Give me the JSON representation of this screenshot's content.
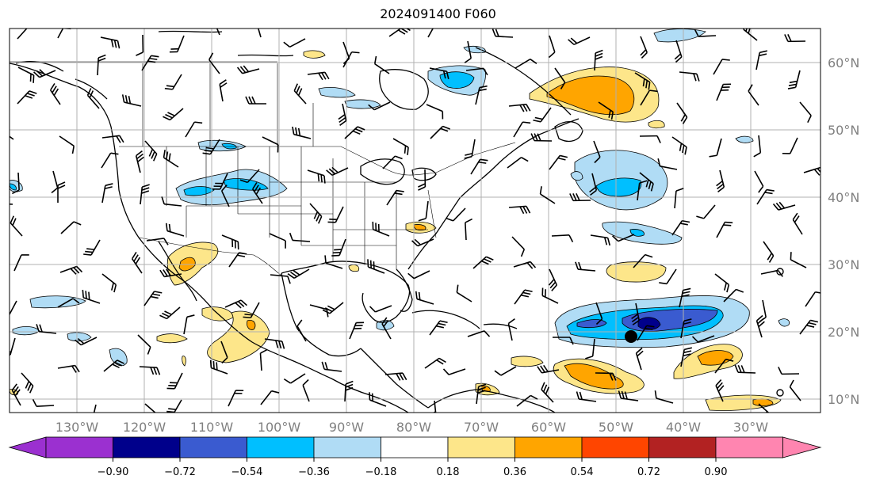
{
  "title": "2024091400 F060",
  "map": {
    "lon_labels": [
      "130°W",
      "120°W",
      "110°W",
      "100°W",
      "90°W",
      "80°W",
      "70°W",
      "60°W",
      "50°W",
      "40°W",
      "30°W"
    ],
    "lat_labels": [
      "60°N",
      "50°N",
      "40°N",
      "30°N",
      "20°N",
      "10°N"
    ],
    "storm_marker": {
      "lon": "48.3°W",
      "lat": "19.2°N"
    }
  },
  "colorbar": {
    "ticks": [
      "−0.90",
      "−0.72",
      "−0.54",
      "−0.36",
      "−0.18",
      "0.18",
      "0.36",
      "0.54",
      "0.72",
      "0.90"
    ],
    "colors": [
      "#9b30d0",
      "#00008b",
      "#3a5bd0",
      "#00bfff",
      "#b0dcf5",
      "#ffffff",
      "#fde68a",
      "#ffa500",
      "#ff4500",
      "#b22222",
      "#ff85b0"
    ]
  },
  "fill_colors": {
    "light_blue": "#b0dcf5",
    "blue": "#00bfff",
    "mid_blue": "#3a5bd0",
    "navy": "#00008b",
    "light_yellow": "#fde68a",
    "orange": "#ffa500"
  }
}
